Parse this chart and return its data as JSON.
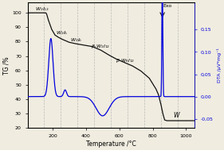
{
  "xlabel": "Temperature /°C",
  "ylabel_left": "TG /%",
  "ylabel_right": "DTA /μV*mg⁻¹",
  "xlim": [
    50,
    1050
  ],
  "ylim_tg": [
    20,
    107
  ],
  "ylim_dta": [
    -0.07,
    0.21
  ],
  "bg_color": "#f0ece0",
  "tg_color": "#111111",
  "dta_color": "#0000dd",
  "vline_color": "#b0b0b0",
  "vline_positions": [
    150,
    250,
    350,
    450,
    550,
    650,
    750,
    850,
    950
  ],
  "yticks_left": [
    20,
    30,
    40,
    50,
    60,
    70,
    80,
    90,
    100
  ],
  "yticks_right": [
    -0.05,
    0.0,
    0.05,
    0.1,
    0.15
  ],
  "xticks": [
    200,
    400,
    600,
    800,
    1000
  ],
  "tg_points_t": [
    50,
    160,
    165,
    175,
    195,
    215,
    235,
    260,
    300,
    340,
    390,
    440,
    490,
    540,
    580,
    630,
    680,
    730,
    780,
    820,
    835,
    850,
    862,
    872,
    885,
    1050
  ],
  "tg_points_v": [
    100,
    100,
    99.0,
    95.0,
    88.5,
    84.5,
    83.0,
    81.5,
    79.5,
    78.5,
    77.5,
    76.5,
    74.0,
    70.5,
    68.0,
    65.5,
    63.0,
    59.5,
    54.5,
    47.0,
    43.0,
    36.0,
    29.5,
    25.5,
    25.0,
    25.0
  ]
}
